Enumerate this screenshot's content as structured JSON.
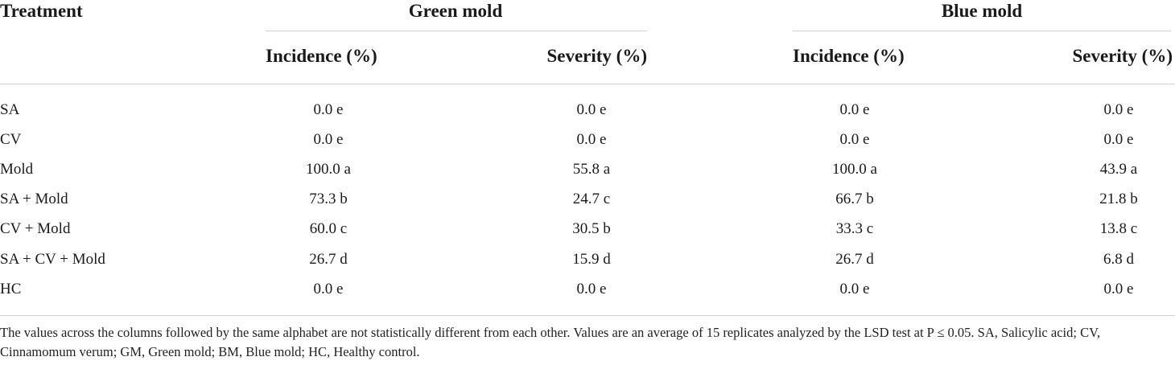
{
  "table": {
    "headers": {
      "treatment": "Treatment",
      "groups": [
        "Green mold",
        "Blue mold"
      ],
      "subheaders": [
        "Incidence (%)",
        "Severity (%)",
        "Incidence (%)",
        "Severity (%)"
      ]
    },
    "rows": [
      {
        "treatment": "SA",
        "values": [
          "0.0 e",
          "0.0 e",
          "0.0 e",
          "0.0 e"
        ]
      },
      {
        "treatment": "CV",
        "values": [
          "0.0 e",
          "0.0 e",
          "0.0 e",
          "0.0 e"
        ]
      },
      {
        "treatment": "Mold",
        "values": [
          "100.0 a",
          "55.8 a",
          "100.0 a",
          "43.9 a"
        ]
      },
      {
        "treatment": "SA + Mold",
        "values": [
          "73.3 b",
          "24.7 c",
          "66.7 b",
          "21.8 b"
        ]
      },
      {
        "treatment": "CV + Mold",
        "values": [
          "60.0 c",
          "30.5 b",
          "33.3 c",
          "13.8 c"
        ]
      },
      {
        "treatment": "SA + CV + Mold",
        "values": [
          "26.7 d",
          "15.9 d",
          "26.7 d",
          "6.8 d"
        ]
      },
      {
        "treatment": "HC",
        "values": [
          "0.0 e",
          "0.0 e",
          "0.0 e",
          "0.0 e"
        ]
      }
    ],
    "footnote": "The values across the columns followed by the same alphabet are not statistically different from each other. Values are an average of 15 replicates analyzed by the LSD test at P ≤ 0.05. SA, Salicylic acid; CV, Cinnamomum verum; GM, Green mold; BM, Blue mold; HC, Healthy control."
  }
}
